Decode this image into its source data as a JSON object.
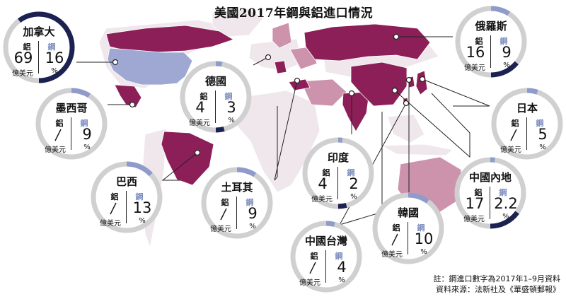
{
  "title": "美國2017年鋼與鋁進口情況",
  "labels": {
    "aluminum": "鋁",
    "steel": "鋼",
    "unit_aluminum": "億美元",
    "unit_steel": "%"
  },
  "colors": {
    "importer": "#8c1f57",
    "usa": "#9fa8d3",
    "ring": "#d0d0d0",
    "aluminum_arc": "#1b2150",
    "steel_arc": "#8f9bcb",
    "country_light": "#efe7ec",
    "country_mid": "#cd93ad",
    "ocean": "#ffffff"
  },
  "countries": [
    {
      "id": "canada",
      "name": "加拿大",
      "aluminum": "69",
      "steel": "16",
      "aluminum_share": 0.6,
      "steel_share": 0.16
    },
    {
      "id": "russia",
      "name": "俄羅斯",
      "aluminum": "16",
      "steel": "9",
      "aluminum_share": 0.14,
      "steel_share": 0.09
    },
    {
      "id": "germany",
      "name": "德國",
      "aluminum": "4",
      "steel": "3",
      "aluminum_share": 0.04,
      "steel_share": 0.03
    },
    {
      "id": "mexico",
      "name": "墨西哥",
      "aluminum": "",
      "steel": "9",
      "aluminum_share": 0,
      "steel_share": 0.09
    },
    {
      "id": "japan",
      "name": "日本",
      "aluminum": "",
      "steel": "5",
      "aluminum_share": 0,
      "steel_share": 0.05
    },
    {
      "id": "india",
      "name": "印度",
      "aluminum": "4",
      "steel": "2",
      "aluminum_share": 0.04,
      "steel_share": 0.02
    },
    {
      "id": "brazil",
      "name": "巴西",
      "aluminum": "",
      "steel": "13",
      "aluminum_share": 0,
      "steel_share": 0.13
    },
    {
      "id": "turkey",
      "name": "土耳其",
      "aluminum": "",
      "steel": "9",
      "aluminum_share": 0,
      "steel_share": 0.09
    },
    {
      "id": "china",
      "name": "中國內地",
      "aluminum": "17",
      "steel": "2.2",
      "aluminum_share": 0.15,
      "steel_share": 0.022
    },
    {
      "id": "korea",
      "name": "韓國",
      "aluminum": "",
      "steel": "10",
      "aluminum_share": 0,
      "steel_share": 0.1
    },
    {
      "id": "taiwan",
      "name": "中國台灣",
      "aluminum": "",
      "steel": "4",
      "aluminum_share": 0,
      "steel_share": 0.04
    }
  ],
  "notes": {
    "note": "註：鋼進口數字為2017年1–9月資料",
    "source": "資料來源：法新社及《華盛頓郵報》"
  }
}
